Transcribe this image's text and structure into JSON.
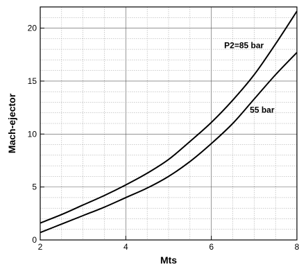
{
  "chart_data": {
    "type": "line",
    "xlabel": "Mts",
    "ylabel": "Mach-ejector",
    "xlim": [
      2,
      8
    ],
    "ylim": [
      0,
      22
    ],
    "x_ticks": [
      2,
      4,
      6,
      8
    ],
    "y_ticks": [
      0,
      5,
      10,
      15,
      20
    ],
    "grid": true,
    "series": [
      {
        "name": "P2=85 bar",
        "x": [
          2,
          2.5,
          3,
          3.5,
          4,
          4.5,
          5,
          5.5,
          6,
          6.5,
          7,
          7.5,
          8
        ],
        "y": [
          1.6,
          2.4,
          3.3,
          4.2,
          5.2,
          6.3,
          7.6,
          9.3,
          11.1,
          13.2,
          15.6,
          18.5,
          21.6
        ]
      },
      {
        "name": "55 bar",
        "x": [
          2,
          2.5,
          3,
          3.5,
          4,
          4.5,
          5,
          5.5,
          6,
          6.5,
          7,
          7.5,
          8
        ],
        "y": [
          0.7,
          1.5,
          2.3,
          3.1,
          4.0,
          4.9,
          6.0,
          7.4,
          9.1,
          11.0,
          13.3,
          15.6,
          17.7
        ]
      }
    ],
    "annotations": [
      {
        "text": "P2=85 bar",
        "x": 6.3,
        "y": 18.1
      },
      {
        "text": "55 bar",
        "x": 6.9,
        "y": 12.0
      }
    ]
  }
}
